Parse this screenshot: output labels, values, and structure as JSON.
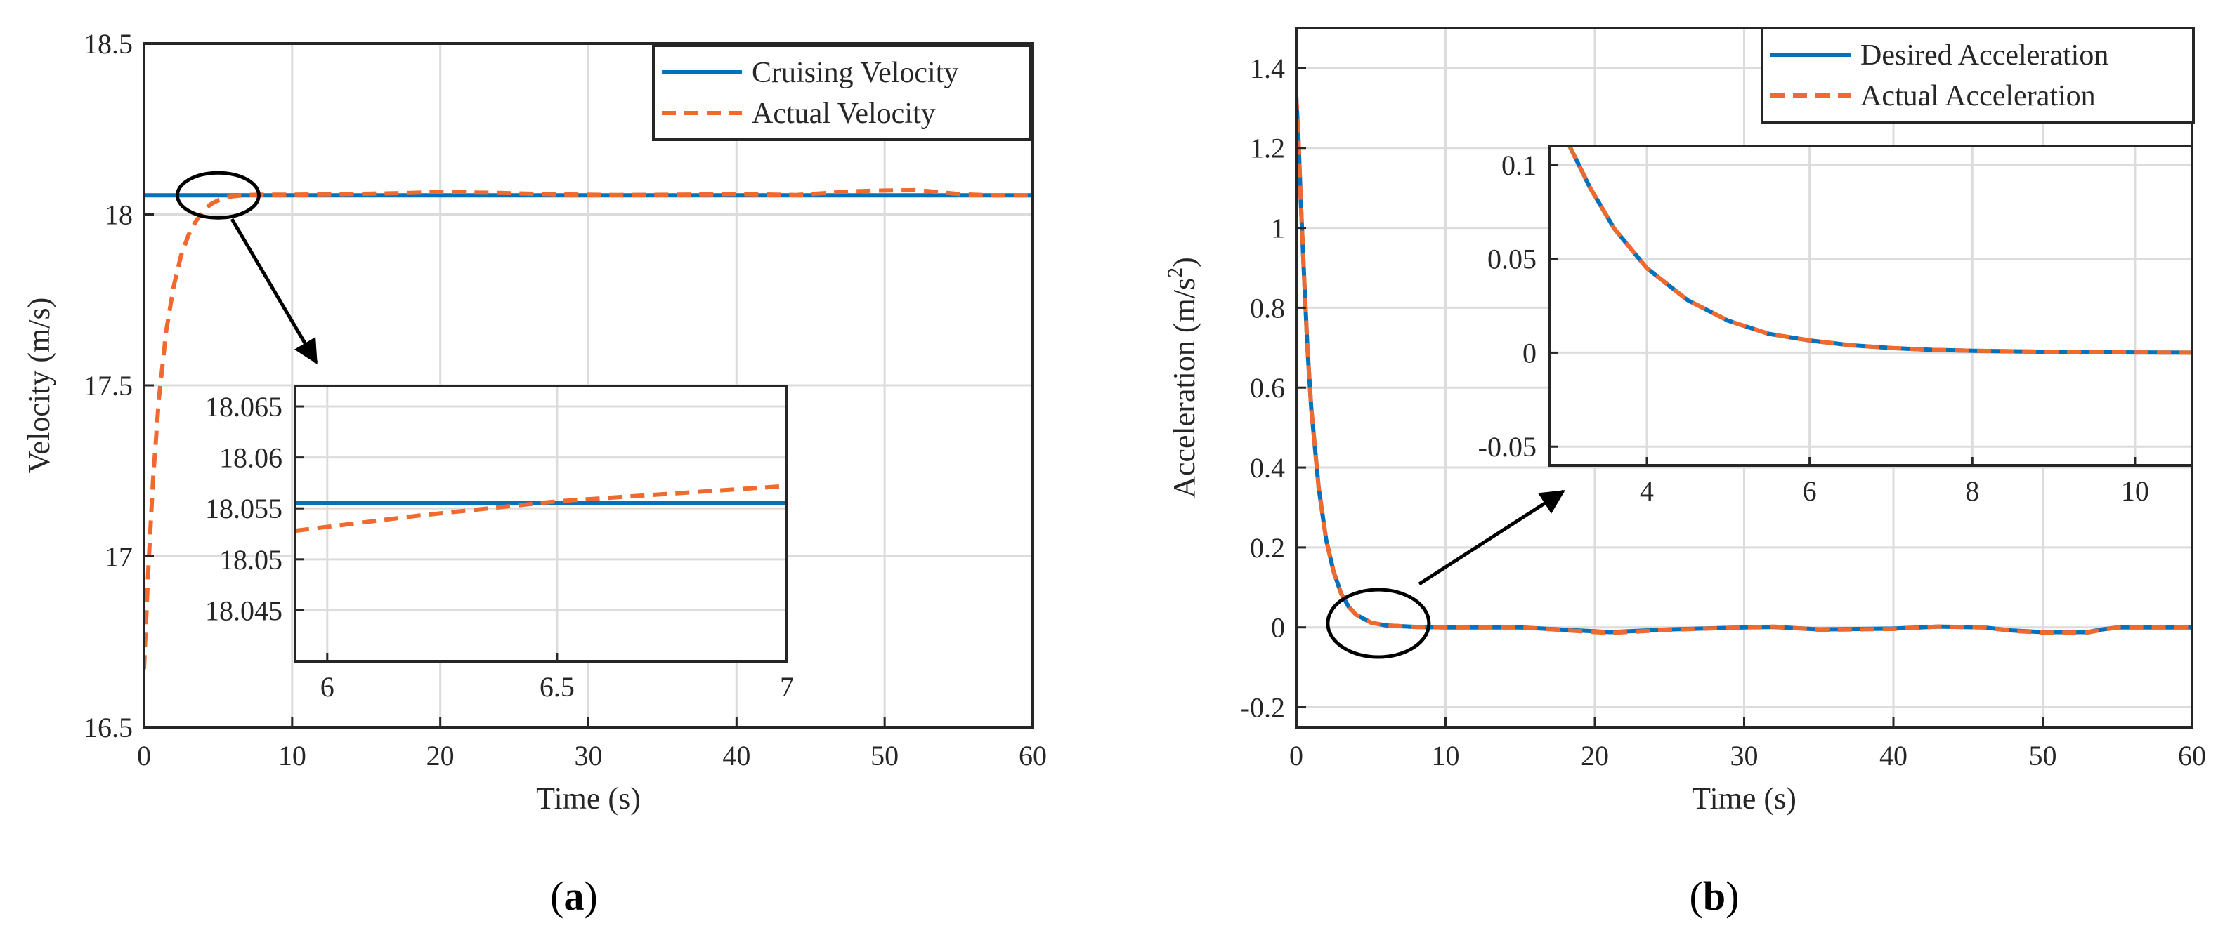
{
  "colors": {
    "desired": "#0072BD",
    "actual": "#F06A30",
    "grid": "#DCDCDC",
    "axis": "#262626"
  },
  "chart_data": [
    {
      "id": "a",
      "type": "line",
      "caption": {
        "open": "(",
        "letter": "a",
        "close": ")"
      },
      "xlabel": "Time (s)",
      "ylabel": "Velocity (m/s)",
      "xlim": [
        0,
        60
      ],
      "ylim": [
        16.5,
        18.5
      ],
      "xticks": [
        0,
        10,
        20,
        30,
        40,
        50,
        60
      ],
      "xtick_labels": [
        "0",
        "10",
        "20",
        "30",
        "40",
        "50",
        "60"
      ],
      "yticks": [
        16.5,
        17,
        17.5,
        18,
        18.5
      ],
      "ytick_labels": [
        "16.5",
        "17",
        "17.5",
        "18",
        "18.5"
      ],
      "grid": true,
      "legend_position": "top-right",
      "series": [
        {
          "name": "Cruising Velocity",
          "style": "solid",
          "color_key": "desired",
          "x": [
            0,
            60
          ],
          "y": [
            18.056,
            18.056
          ]
        },
        {
          "name": "Actual Velocity",
          "style": "dashed",
          "color_key": "actual",
          "x": [
            0,
            0.3,
            0.6,
            1,
            1.5,
            2,
            2.5,
            3,
            3.5,
            4,
            4.5,
            5,
            5.5,
            6,
            7,
            8,
            10,
            14,
            18,
            20,
            24,
            28,
            32,
            36,
            40,
            44,
            48,
            50,
            52,
            53,
            55,
            57,
            60
          ],
          "y": [
            16.67,
            16.97,
            17.22,
            17.46,
            17.66,
            17.79,
            17.88,
            17.94,
            17.98,
            18.01,
            18.03,
            18.041,
            18.05,
            18.053,
            18.057,
            18.058,
            18.058,
            18.06,
            18.063,
            18.066,
            18.063,
            18.059,
            18.057,
            18.058,
            18.06,
            18.057,
            18.068,
            18.07,
            18.071,
            18.068,
            18.06,
            18.056,
            18.056
          ]
        }
      ],
      "inset": {
        "xlim": [
          5.93,
          7
        ],
        "ylim": [
          18.04,
          18.067
        ],
        "xticks": [
          6,
          6.5,
          7
        ],
        "xtick_labels": [
          "6",
          "6.5",
          "7"
        ],
        "yticks": [
          18.045,
          18.05,
          18.055,
          18.06,
          18.065
        ],
        "ytick_labels": [
          "18.045",
          "18.05",
          "18.055",
          "18.06",
          "18.065"
        ],
        "series": [
          {
            "name": "Cruising Velocity",
            "x": [
              5.93,
              7
            ],
            "y": [
              18.0555,
              18.0555
            ]
          },
          {
            "name": "Actual Velocity",
            "x": [
              5.93,
              6.2,
              6.5,
              6.8,
              7
            ],
            "y": [
              18.0528,
              18.0543,
              18.0557,
              18.0566,
              18.0572
            ]
          }
        ],
        "zoom_center": {
          "x": 5,
          "y": 18.056
        }
      }
    },
    {
      "id": "b",
      "type": "line",
      "caption": {
        "open": "(",
        "letter": "b",
        "close": ")"
      },
      "xlabel": "Time (s)",
      "ylabel": "Acceleration (m/s",
      "ylabel_sup": "2",
      "ylabel_close": ")",
      "xlim": [
        0,
        60
      ],
      "ylim": [
        -0.25,
        1.5
      ],
      "xticks": [
        0,
        10,
        20,
        30,
        40,
        50,
        60
      ],
      "xtick_labels": [
        "0",
        "10",
        "20",
        "30",
        "40",
        "50",
        "60"
      ],
      "yticks": [
        -0.2,
        0,
        0.2,
        0.4,
        0.6,
        0.8,
        1,
        1.2,
        1.4
      ],
      "ytick_labels": [
        "-0.2",
        "0",
        "0.2",
        "0.4",
        "0.6",
        "0.8",
        "1",
        "1.2",
        "1.4"
      ],
      "grid": true,
      "legend_position": "top-right",
      "series": [
        {
          "name": "Desired Acceleration",
          "style": "solid",
          "color_key": "desired",
          "x": [
            0,
            0.15,
            0.3,
            0.5,
            0.75,
            1,
            1.5,
            2,
            2.5,
            3,
            3.5,
            4,
            5,
            6,
            8,
            10,
            15,
            20,
            21,
            25,
            30,
            32,
            35,
            40,
            43,
            46,
            48,
            50,
            53,
            54,
            55,
            60
          ],
          "y": [
            1.33,
            1.22,
            1.07,
            0.9,
            0.7,
            0.55,
            0.35,
            0.22,
            0.14,
            0.085,
            0.052,
            0.032,
            0.012,
            0.005,
            0.001,
            0,
            0,
            -0.01,
            -0.012,
            -0.005,
            0,
            0.001,
            -0.005,
            -0.003,
            0.002,
            0,
            -0.008,
            -0.012,
            -0.012,
            -0.005,
            0,
            0
          ]
        },
        {
          "name": "Actual Acceleration",
          "style": "dashed",
          "color_key": "actual",
          "x": [
            0,
            0.15,
            0.3,
            0.5,
            0.75,
            1,
            1.5,
            2,
            2.5,
            3,
            3.5,
            4,
            5,
            6,
            8,
            10,
            15,
            20,
            21,
            25,
            30,
            32,
            35,
            40,
            43,
            46,
            48,
            50,
            53,
            54,
            55,
            60
          ],
          "y": [
            1.33,
            1.22,
            1.07,
            0.9,
            0.7,
            0.55,
            0.35,
            0.22,
            0.14,
            0.085,
            0.052,
            0.032,
            0.012,
            0.005,
            0.001,
            0,
            0,
            -0.012,
            -0.014,
            -0.006,
            0,
            0.002,
            -0.006,
            -0.004,
            0.002,
            0,
            -0.009,
            -0.013,
            -0.013,
            -0.006,
            0,
            0
          ]
        }
      ],
      "inset": {
        "xlim": [
          2.8,
          10.7
        ],
        "ylim": [
          -0.06,
          0.11
        ],
        "xticks": [
          4,
          6,
          8,
          10
        ],
        "xtick_labels": [
          "4",
          "6",
          "8",
          "10"
        ],
        "yticks": [
          -0.05,
          0,
          0.05,
          0.1
        ],
        "ytick_labels": [
          "-0.05",
          "0",
          "0.05",
          "0.1"
        ],
        "series": [
          {
            "name": "Desired Acceleration",
            "x": [
              3.05,
              3.3,
              3.6,
              4,
              4.5,
              5,
              5.5,
              6,
              6.5,
              7,
              7.5,
              8,
              9,
              10,
              10.7
            ],
            "y": [
              0.11,
              0.088,
              0.066,
              0.045,
              0.028,
              0.017,
              0.01,
              0.0065,
              0.004,
              0.0025,
              0.0015,
              0.001,
              0.0004,
              0.0001,
              0
            ]
          },
          {
            "name": "Actual Acceleration",
            "x": [
              3.05,
              3.3,
              3.6,
              4,
              4.5,
              5,
              5.5,
              6,
              6.5,
              7,
              7.5,
              8,
              9,
              10,
              10.7
            ],
            "y": [
              0.11,
              0.088,
              0.066,
              0.045,
              0.028,
              0.017,
              0.01,
              0.0065,
              0.004,
              0.0025,
              0.0015,
              0.001,
              0.0004,
              0.0001,
              0
            ]
          }
        ],
        "zoom_center": {
          "x": 5.5,
          "y": 0.01
        }
      }
    }
  ]
}
